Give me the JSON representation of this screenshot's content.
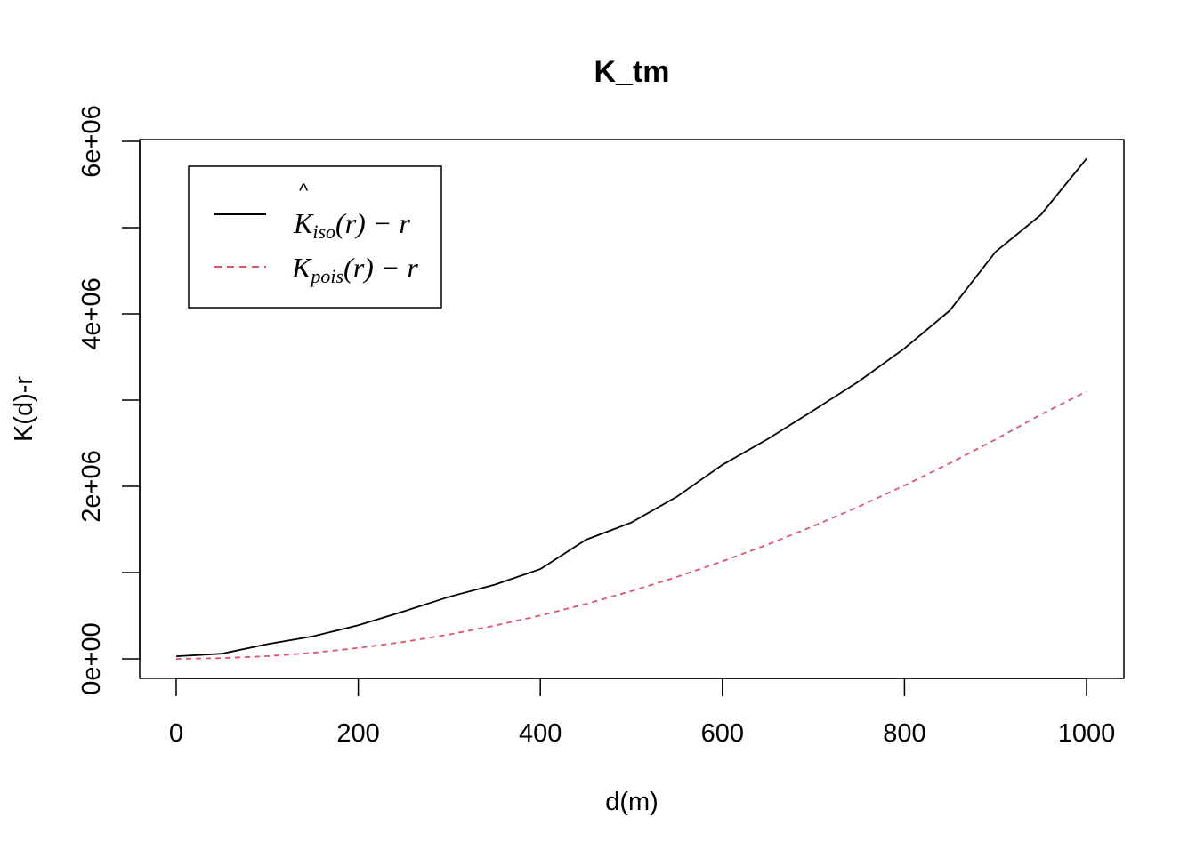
{
  "chart_data": {
    "type": "line",
    "title": "K_tm",
    "xlabel": "d(m)",
    "ylabel": "K(d)-r",
    "xlim": [
      0,
      1000
    ],
    "ylim": [
      0,
      6000000
    ],
    "xticks": [
      0,
      200,
      400,
      600,
      800,
      1000
    ],
    "xtick_labels": [
      "0",
      "200",
      "400",
      "600",
      "800",
      "1000"
    ],
    "yticks": [
      0,
      1000000,
      2000000,
      3000000,
      4000000,
      5000000,
      6000000
    ],
    "ytick_labels": [
      "0e+00",
      "",
      "2e+06",
      "",
      "4e+06",
      "",
      "6e+06"
    ],
    "grid": false,
    "legend_position": "top-left",
    "x": [
      0,
      50,
      100,
      150,
      200,
      250,
      300,
      350,
      400,
      450,
      500,
      550,
      600,
      650,
      700,
      750,
      800,
      850,
      900,
      950,
      1000
    ],
    "series": [
      {
        "name": "K_iso(r) - r",
        "legend": {
          "main": "K",
          "hat": "^",
          "sub": "iso",
          "tail": "(r) − r"
        },
        "color": "#000000",
        "dash": "solid",
        "values": [
          30000,
          60000,
          170000,
          260000,
          390000,
          550000,
          720000,
          860000,
          1040000,
          1380000,
          1580000,
          1880000,
          2250000,
          2550000,
          2880000,
          3220000,
          3600000,
          4040000,
          4720000,
          5150000,
          5800000
        ]
      },
      {
        "name": "K_pois(r) - r",
        "legend": {
          "main": "K",
          "hat": "",
          "sub": "pois",
          "tail": "(r) − r"
        },
        "color": "#DF536B",
        "dash": "dashed",
        "values": [
          0,
          7800,
          31000,
          70500,
          125500,
          196000,
          282400,
          384500,
          502300,
          635700,
          784900,
          949800,
          1130400,
          1326700,
          1538700,
          1766400,
          2009800,
          2268900,
          2543800,
          2834400,
          3100000
        ]
      }
    ]
  }
}
